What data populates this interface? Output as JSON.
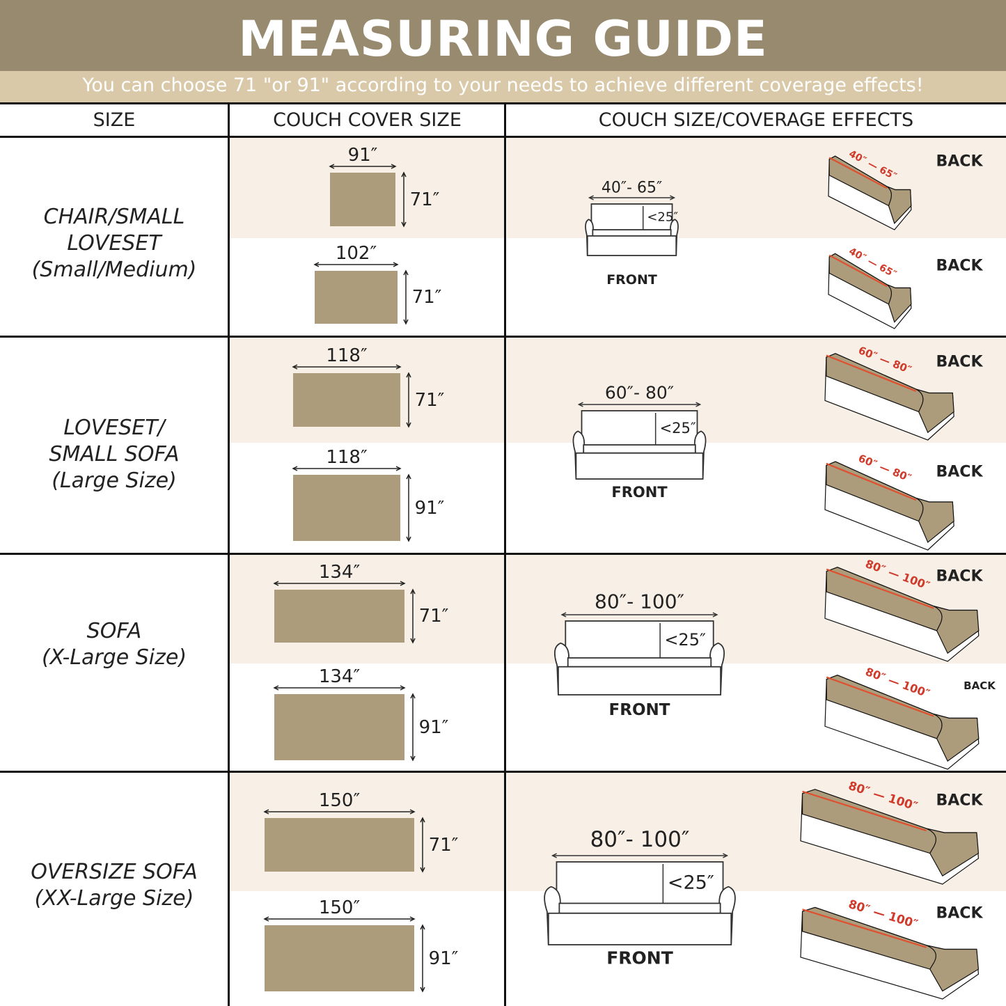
{
  "title": "MEASURING GUIDE",
  "subtitle": "You can choose 71 \"or 91\" according to your needs to achieve different coverage effects!",
  "columns": [
    "SIZE",
    "COUCH COVER SIZE",
    "COUCH SIZE/COVERAGE EFFECTS"
  ],
  "colors": {
    "header": "#978a6e",
    "subtitle_band": "#dac9a8",
    "highlight": "#f8f0e6",
    "fabric": "#ac9c7c",
    "measure_line": "#e0502f"
  },
  "rows": [
    {
      "label": [
        "CHAIR/SMALL",
        "LOVESET",
        "(Small/Medium)"
      ],
      "covers": [
        {
          "width": "91″",
          "height": "71″"
        },
        {
          "width": "102″",
          "height": "71″"
        }
      ],
      "front": {
        "range": "40″- 65″",
        "height": "<25″",
        "label": "FRONT"
      },
      "backs": [
        {
          "from": "40″",
          "to": "65″",
          "label": "BACK"
        },
        {
          "from": "40″",
          "to": "65″",
          "label": "BACK"
        }
      ]
    },
    {
      "label": [
        "LOVESET/",
        "SMALL SOFA",
        "(Large Size)"
      ],
      "covers": [
        {
          "width": "118″",
          "height": "71″"
        },
        {
          "width": "118″",
          "height": "91″"
        }
      ],
      "front": {
        "range": "60″- 80″",
        "height": "<25″",
        "label": "FRONT"
      },
      "backs": [
        {
          "from": "60″",
          "to": "80″",
          "label": "BACK"
        },
        {
          "from": "60″",
          "to": "80″",
          "label": "BACK"
        }
      ]
    },
    {
      "label": [
        "SOFA",
        "(X-Large Size)"
      ],
      "covers": [
        {
          "width": "134″",
          "height": "71″"
        },
        {
          "width": "134″",
          "height": "91″"
        }
      ],
      "front": {
        "range": "80″- 100″",
        "height": "<25″",
        "label": "FRONT"
      },
      "backs": [
        {
          "from": "80″",
          "to": "100″",
          "label": "BACK"
        },
        {
          "from": "80″",
          "to": "100″",
          "label": "BACK"
        }
      ]
    },
    {
      "label": [
        "OVERSIZE SOFA",
        "(XX-Large  Size)"
      ],
      "covers": [
        {
          "width": "150″",
          "height": "71″"
        },
        {
          "width": "150″",
          "height": "91″"
        }
      ],
      "front": {
        "range": "80″- 100″",
        "height": "<25″",
        "label": "FRONT"
      },
      "backs": [
        {
          "from": "80″",
          "to": "100″",
          "label": "BACK"
        },
        {
          "from": "80″",
          "to": "100″",
          "label": "BACK"
        }
      ]
    }
  ]
}
